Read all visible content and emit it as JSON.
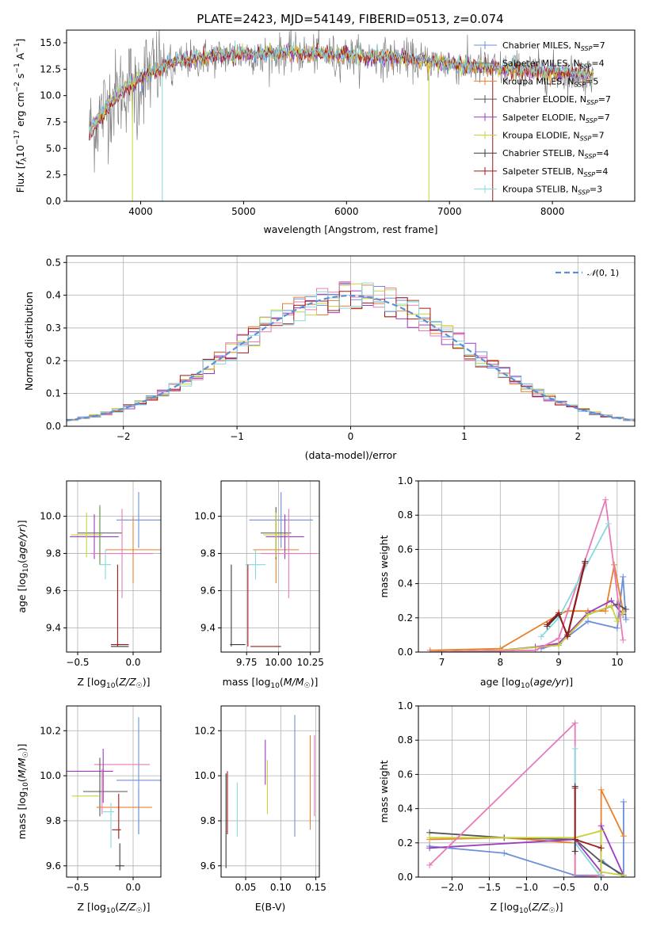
{
  "figure": {
    "title": "PLATE=2423, MJD=54149, FIBERID=0513, z=0.074"
  },
  "colors": {
    "chabrier_miles": "#6b8fd8",
    "salpeter_miles": "#7a7a7a",
    "kroupa_miles": "#e8812d",
    "chabrier_elodie": "#555555",
    "salpeter_elodie": "#9b3bc0",
    "kroupa_elodie": "#c9d23a",
    "chabrier_stelib": "#3a3a3a",
    "salpeter_stelib": "#a01818",
    "kroupa_stelib": "#86d9dc",
    "green_model": "#6a9a4a",
    "pink_model": "#e87ab8",
    "yellow_model": "#e3e35a",
    "gauss": "#5b8fd6",
    "grid": "#b0b0b0"
  },
  "legend_spectrum": [
    {
      "text": "Chabrier MILES, N",
      "sub": "SSP",
      "tail": "=7",
      "color": "#6b8fd8"
    },
    {
      "text": "Salpeter MILES, N",
      "sub": "SSP",
      "tail": "=4",
      "color": "#7a7a7a"
    },
    {
      "text": "Kroupa MILES, N",
      "sub": "SSP",
      "tail": "=5",
      "color": "#e8812d"
    },
    {
      "text": "Chabrier ELODIE, N",
      "sub": "SSP",
      "tail": "=7",
      "color": "#555555"
    },
    {
      "text": "Salpeter ELODIE, N",
      "sub": "SSP",
      "tail": "=7",
      "color": "#9b3bc0"
    },
    {
      "text": "Kroupa ELODIE, N",
      "sub": "SSP",
      "tail": "=7",
      "color": "#c9d23a"
    },
    {
      "text": "Chabrier STELIB, N",
      "sub": "SSP",
      "tail": "=4",
      "color": "#3a3a3a"
    },
    {
      "text": "Salpeter STELIB, N",
      "sub": "SSP",
      "tail": "=4",
      "color": "#a01818"
    },
    {
      "text": "Kroupa STELIB, N",
      "sub": "SSP",
      "tail": "=3",
      "color": "#86d9dc"
    }
  ],
  "chart_data": [
    {
      "id": "spectrum",
      "type": "line",
      "xlabel": "wavelength [Angstrom, rest frame]",
      "ylabel": "Flux [f_λ 10^-17 erg cm^-2 s^-1 A^-1]",
      "xlim": [
        3280,
        8800
      ],
      "ylim": [
        0,
        16.2
      ],
      "xticks": [
        4000,
        5000,
        6000,
        7000,
        8000
      ],
      "yticks": [
        0.0,
        2.5,
        5.0,
        7.5,
        10.0,
        12.5,
        15.0
      ],
      "xrange_data": [
        3500,
        8400
      ],
      "continuum_shape": [
        [
          3500,
          6.5
        ],
        [
          3700,
          9.5
        ],
        [
          3900,
          11.2
        ],
        [
          4100,
          12.2
        ],
        [
          4300,
          13.0
        ],
        [
          4600,
          13.6
        ],
        [
          5000,
          13.9
        ],
        [
          5500,
          14.0
        ],
        [
          6000,
          13.8
        ],
        [
          6500,
          13.5
        ],
        [
          7000,
          13.0
        ],
        [
          7500,
          12.5
        ],
        [
          8000,
          12.2
        ],
        [
          8400,
          12.0
        ]
      ]
    },
    {
      "id": "residuals",
      "type": "line",
      "xlabel": "(data-model)/error",
      "ylabel": "Normed distribution",
      "xlim": [
        -2.5,
        2.5
      ],
      "ylim": [
        0,
        0.52
      ],
      "xticks": [
        -2,
        -1,
        0,
        1,
        2
      ],
      "yticks": [
        0.0,
        0.1,
        0.2,
        0.3,
        0.4,
        0.5
      ],
      "legend": "N(0,1)",
      "gaussian": {
        "mean": 0,
        "sigma": 1
      }
    },
    {
      "id": "age_vs_Z",
      "type": "scatter",
      "xlabel": "Z [log10(Z/Z☉)]",
      "ylabel": "age [log10(age/yr)]",
      "xlim": [
        -0.6,
        0.25
      ],
      "ylim": [
        9.27,
        10.19
      ],
      "xticks": [
        -0.5,
        0.0
      ],
      "yticks": [
        9.4,
        9.6,
        9.8,
        10.0
      ],
      "points": [
        {
          "color": "#6b8fd8",
          "x": 0.05,
          "xerr": 0.2,
          "y": 9.98,
          "yerr": 0.15
        },
        {
          "color": "#e8812d",
          "x": 0.0,
          "xerr": 0.25,
          "y": 9.82,
          "yerr": 0.18
        },
        {
          "color": "#555555",
          "x": -0.3,
          "xerr": 0.2,
          "y": 9.91,
          "yerr": 0.14
        },
        {
          "color": "#9b3bc0",
          "x": -0.35,
          "xerr": 0.22,
          "y": 9.89,
          "yerr": 0.12
        },
        {
          "color": "#c9d23a",
          "x": -0.42,
          "xerr": 0.14,
          "y": 9.9,
          "yerr": 0.12
        },
        {
          "color": "#e87ab8",
          "x": -0.1,
          "xerr": 0.28,
          "y": 9.8,
          "yerr": 0.24
        },
        {
          "color": "#86d9dc",
          "x": -0.25,
          "xerr": 0.05,
          "y": 9.74,
          "yerr": 0.08
        },
        {
          "color": "#a01818",
          "x": -0.12,
          "xerr": 0.08,
          "y": 9.31,
          "yerr": 0.0
        },
        {
          "color": "#3a3a3a",
          "x": -0.12,
          "xerr": 0.08,
          "y": 9.3,
          "yerr": 0.0
        },
        {
          "color": "#a01818",
          "x": -0.14,
          "xerr": 0.0,
          "y": 9.52,
          "yerr": 0.22
        },
        {
          "color": "#6a9a4a",
          "x": -0.3,
          "xerr": 0.0,
          "y": 9.9,
          "yerr": 0.16
        }
      ]
    },
    {
      "id": "age_vs_mass",
      "type": "scatter",
      "xlabel": "mass [log10(M/M☉)]",
      "ylabel": "",
      "xlim": [
        9.55,
        10.32
      ],
      "ylim": [
        9.27,
        10.19
      ],
      "xticks": [
        9.75,
        10.0,
        10.25
      ],
      "yticks": [
        9.4,
        9.6,
        9.8,
        10.0
      ],
      "points": [
        {
          "color": "#6b8fd8",
          "x": 10.02,
          "xerr": 0.25,
          "y": 9.98,
          "yerr": 0.15
        },
        {
          "color": "#e8812d",
          "x": 9.98,
          "xerr": 0.18,
          "y": 9.82,
          "yerr": 0.18
        },
        {
          "color": "#555555",
          "x": 9.98,
          "xerr": 0.12,
          "y": 9.91,
          "yerr": 0.14
        },
        {
          "color": "#9b3bc0",
          "x": 10.05,
          "xerr": 0.15,
          "y": 9.89,
          "yerr": 0.12
        },
        {
          "color": "#c9d23a",
          "x": 9.98,
          "xerr": 0.1,
          "y": 9.9,
          "yerr": 0.12
        },
        {
          "color": "#e87ab8",
          "x": 10.08,
          "xerr": 0.22,
          "y": 9.8,
          "yerr": 0.24
        },
        {
          "color": "#86d9dc",
          "x": 9.82,
          "xerr": 0.08,
          "y": 9.74,
          "yerr": 0.08
        },
        {
          "color": "#a01818",
          "x": 9.76,
          "xerr": 0.0,
          "y": 9.52,
          "yerr": 0.22
        },
        {
          "color": "#a01818",
          "x": 9.9,
          "xerr": 0.12,
          "y": 9.3,
          "yerr": 0.0
        },
        {
          "color": "#3a3a3a",
          "x": 9.68,
          "xerr": 0.06,
          "y": 9.31,
          "yerr": 0.0
        },
        {
          "color": "#3a3a3a",
          "x": 9.63,
          "xerr": 0.0,
          "y": 9.52,
          "yerr": 0.22
        }
      ]
    },
    {
      "id": "weight_vs_age",
      "type": "line",
      "xlabel": "age [log10(age/yr)]",
      "ylabel": "mass weight",
      "xlim": [
        6.6,
        10.3
      ],
      "ylim": [
        0,
        1.0
      ],
      "xticks": [
        7,
        8,
        9,
        10
      ],
      "yticks": [
        0.0,
        0.2,
        0.4,
        0.6,
        0.8,
        1.0
      ],
      "series": [
        {
          "color": "#6b8fd8",
          "x": [
            8.7,
            9.0,
            9.5,
            10.0,
            10.1,
            10.15
          ],
          "y": [
            0.02,
            0.05,
            0.18,
            0.14,
            0.44,
            0.19
          ]
        },
        {
          "color": "#e8812d",
          "x": [
            6.8,
            8.0,
            9.0,
            9.15,
            9.5,
            9.8,
            9.95,
            10.1
          ],
          "y": [
            0.01,
            0.02,
            0.22,
            0.24,
            0.24,
            0.24,
            0.51,
            0.24
          ]
        },
        {
          "color": "#555555",
          "x": [
            6.8,
            8.0,
            9.0,
            9.5,
            10.0,
            10.15
          ],
          "y": [
            0.0,
            0.01,
            0.04,
            0.22,
            0.28,
            0.25
          ]
        },
        {
          "color": "#9b3bc0",
          "x": [
            6.8,
            8.0,
            8.6,
            9.0,
            9.5,
            9.9,
            10.1
          ],
          "y": [
            0.0,
            0.01,
            0.03,
            0.05,
            0.23,
            0.3,
            0.22
          ]
        },
        {
          "color": "#c9d23a",
          "x": [
            6.8,
            8.0,
            9.0,
            9.5,
            9.9,
            10.0,
            10.1
          ],
          "y": [
            0.0,
            0.01,
            0.04,
            0.22,
            0.27,
            0.18,
            0.23
          ]
        },
        {
          "color": "#e87ab8",
          "x": [
            6.8,
            8.6,
            9.0,
            9.8,
            10.1
          ],
          "y": [
            0.0,
            0.01,
            0.08,
            0.89,
            0.07
          ]
        },
        {
          "color": "#86d9dc",
          "x": [
            8.7,
            9.0,
            9.85
          ],
          "y": [
            0.09,
            0.2,
            0.75
          ]
        },
        {
          "color": "#3a3a3a",
          "x": [
            8.8,
            9.0,
            9.15,
            9.45
          ],
          "y": [
            0.15,
            0.22,
            0.1,
            0.53
          ]
        },
        {
          "color": "#a01818",
          "x": [
            8.8,
            9.0,
            9.15,
            9.45
          ],
          "y": [
            0.16,
            0.23,
            0.09,
            0.52
          ]
        }
      ]
    },
    {
      "id": "mass_vs_Z",
      "type": "scatter",
      "xlabel": "Z [log10(Z/Z☉)]",
      "ylabel": "mass [log10(M/M☉)]",
      "xlim": [
        -0.6,
        0.25
      ],
      "ylim": [
        9.55,
        10.31
      ],
      "xticks": [
        -0.5,
        0.0
      ],
      "yticks": [
        9.6,
        9.8,
        10.0,
        10.2
      ],
      "points": [
        {
          "color": "#6b8fd8",
          "x": 0.05,
          "xerr": 0.2,
          "y": 9.98,
          "yerr": 0.0
        },
        {
          "color": "#6b8fd8",
          "x": 0.05,
          "xerr": 0.0,
          "y": 10.0,
          "yerr": 0.26
        },
        {
          "color": "#e87ab8",
          "x": -0.1,
          "xerr": 0.25,
          "y": 10.05,
          "yerr": 0.0
        },
        {
          "color": "#9b3bc0",
          "x": -0.4,
          "xerr": 0.22,
          "y": 10.02,
          "yerr": 0.0
        },
        {
          "color": "#9b3bc0",
          "x": -0.27,
          "xerr": 0.0,
          "y": 10.0,
          "yerr": 0.12
        },
        {
          "color": "#555555",
          "x": -0.25,
          "xerr": 0.2,
          "y": 9.93,
          "yerr": 0.0
        },
        {
          "color": "#555555",
          "x": -0.3,
          "xerr": 0.0,
          "y": 9.95,
          "yerr": 0.13
        },
        {
          "color": "#c9d23a",
          "x": -0.43,
          "xerr": 0.12,
          "y": 9.91,
          "yerr": 0.0
        },
        {
          "color": "#e8812d",
          "x": -0.08,
          "xerr": 0.25,
          "y": 9.86,
          "yerr": 0.0
        },
        {
          "color": "#e87ab8",
          "x": -0.28,
          "xerr": 0.0,
          "y": 9.93,
          "yerr": 0.1
        },
        {
          "color": "#86d9dc",
          "x": -0.22,
          "xerr": 0.05,
          "y": 9.84,
          "yerr": 0.0
        },
        {
          "color": "#86d9dc",
          "x": -0.2,
          "xerr": 0.0,
          "y": 9.78,
          "yerr": 0.1
        },
        {
          "color": "#a01818",
          "x": -0.15,
          "xerr": 0.04,
          "y": 9.76,
          "yerr": 0.0
        },
        {
          "color": "#a01818",
          "x": -0.13,
          "xerr": 0.0,
          "y": 9.82,
          "yerr": 0.1
        },
        {
          "color": "#3a3a3a",
          "x": -0.12,
          "xerr": 0.04,
          "y": 9.6,
          "yerr": 0.0
        },
        {
          "color": "#3a3a3a",
          "x": -0.12,
          "xerr": 0.0,
          "y": 9.64,
          "yerr": 0.06
        },
        {
          "color": "#6b8fd8",
          "x": 0.05,
          "xerr": 0.0,
          "y": 9.84,
          "yerr": 0.1
        }
      ]
    },
    {
      "id": "mass_vs_ebv",
      "type": "scatter",
      "xlabel": "E(B-V)",
      "ylabel": "",
      "xlim": [
        0.015,
        0.155
      ],
      "ylim": [
        9.55,
        10.31
      ],
      "xticks": [
        0.05,
        0.1,
        0.15
      ],
      "xticklabels": [
        "0.05",
        "0.10",
        "0.15"
      ],
      "yticks": [
        9.6,
        9.8,
        10.0,
        10.2
      ],
      "points": [
        {
          "color": "#3a3a3a",
          "x": 0.022,
          "y": 9.8,
          "yerr": 0.21
        },
        {
          "color": "#a01818",
          "x": 0.024,
          "y": 9.88,
          "yerr": 0.14
        },
        {
          "color": "#86d9dc",
          "x": 0.038,
          "y": 9.85,
          "yerr": 0.12
        },
        {
          "color": "#9b3bc0",
          "x": 0.078,
          "y": 10.06,
          "yerr": 0.1
        },
        {
          "color": "#c9d23a",
          "x": 0.081,
          "y": 9.95,
          "yerr": 0.12
        },
        {
          "color": "#6b8fd8",
          "x": 0.12,
          "y": 10.0,
          "yerr": 0.27
        },
        {
          "color": "#e8812d",
          "x": 0.142,
          "y": 9.97,
          "yerr": 0.21
        },
        {
          "color": "#e87ab8",
          "x": 0.148,
          "y": 10.0,
          "yerr": 0.18
        }
      ]
    },
    {
      "id": "weight_vs_Z",
      "type": "line",
      "xlabel": "Z [log10(Z/Z☉)]",
      "ylabel": "mass weight",
      "xlim": [
        -2.45,
        0.45
      ],
      "ylim": [
        0,
        1.0
      ],
      "xticks": [
        -2.0,
        -1.5,
        -1.0,
        -0.5,
        0.0
      ],
      "yticks": [
        0.0,
        0.2,
        0.4,
        0.6,
        0.8,
        1.0
      ],
      "series": [
        {
          "color": "#6b8fd8",
          "x": [
            -2.3,
            -1.3,
            -0.35,
            0.0,
            0.0,
            0.3,
            0.3
          ],
          "y": [
            0.18,
            0.14,
            0.01,
            0.01,
            0.1,
            0.0,
            0.44
          ]
        },
        {
          "color": "#e8812d",
          "x": [
            -2.3,
            -1.3,
            -0.35,
            -0.35,
            0.0,
            0.0,
            0.3
          ],
          "y": [
            0.22,
            0.23,
            0.2,
            0.0,
            0.01,
            0.51,
            0.24
          ]
        },
        {
          "color": "#555555",
          "x": [
            -2.3,
            -1.3,
            -0.35,
            0.0,
            0.3
          ],
          "y": [
            0.26,
            0.23,
            0.22,
            0.09,
            0.01
          ]
        },
        {
          "color": "#9b3bc0",
          "x": [
            -2.3,
            -0.35,
            0.0,
            0.0,
            0.3
          ],
          "y": [
            0.17,
            0.22,
            0.03,
            0.3,
            0.01
          ]
        },
        {
          "color": "#c9d23a",
          "x": [
            -2.3,
            -0.35,
            0.0,
            0.0,
            0.3
          ],
          "y": [
            0.23,
            0.23,
            0.27,
            0.03,
            0.01
          ]
        },
        {
          "color": "#e87ab8",
          "x": [
            -2.3,
            -0.35,
            -0.35,
            0.0
          ],
          "y": [
            0.07,
            0.9,
            0.0,
            0.01
          ]
        },
        {
          "color": "#86d9dc",
          "x": [
            -0.35,
            -0.35,
            0.0
          ],
          "y": [
            0.75,
            0.2,
            0.0
          ]
        },
        {
          "color": "#3a3a3a",
          "x": [
            -0.35,
            -0.35,
            -0.35
          ],
          "y": [
            0.53,
            0.22,
            0.15
          ]
        },
        {
          "color": "#a01818",
          "x": [
            -0.35,
            -0.35,
            0.0
          ],
          "y": [
            0.52,
            0.22,
            0.17
          ]
        }
      ]
    }
  ]
}
